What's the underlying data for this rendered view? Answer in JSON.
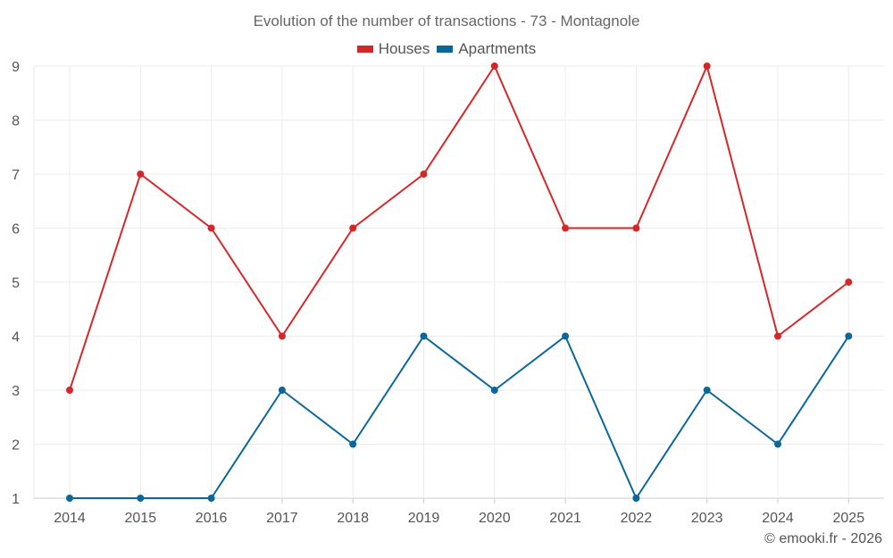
{
  "chart_data": {
    "type": "line",
    "title": "Evolution of the number of transactions - 73 - Montagnole",
    "xlabel": "",
    "ylabel": "",
    "categories": [
      "2014",
      "2015",
      "2016",
      "2017",
      "2018",
      "2019",
      "2020",
      "2021",
      "2022",
      "2023",
      "2024",
      "2025"
    ],
    "ylim": [
      1,
      9
    ],
    "yticks": [
      "1",
      "2",
      "3",
      "4",
      "5",
      "6",
      "7",
      "8",
      "9"
    ],
    "grid": true,
    "legend_position": "top",
    "series": [
      {
        "name": "Houses",
        "color": "#d62728",
        "values": [
          3,
          7,
          6,
          4,
          6,
          7,
          9,
          6,
          6,
          9,
          4,
          5
        ]
      },
      {
        "name": "Apartments",
        "color": "#0a6799",
        "values": [
          1,
          1,
          1,
          3,
          2,
          4,
          3,
          4,
          1,
          3,
          2,
          4
        ]
      }
    ]
  },
  "footer": {
    "credit": "© emooki.fr - 2026"
  }
}
